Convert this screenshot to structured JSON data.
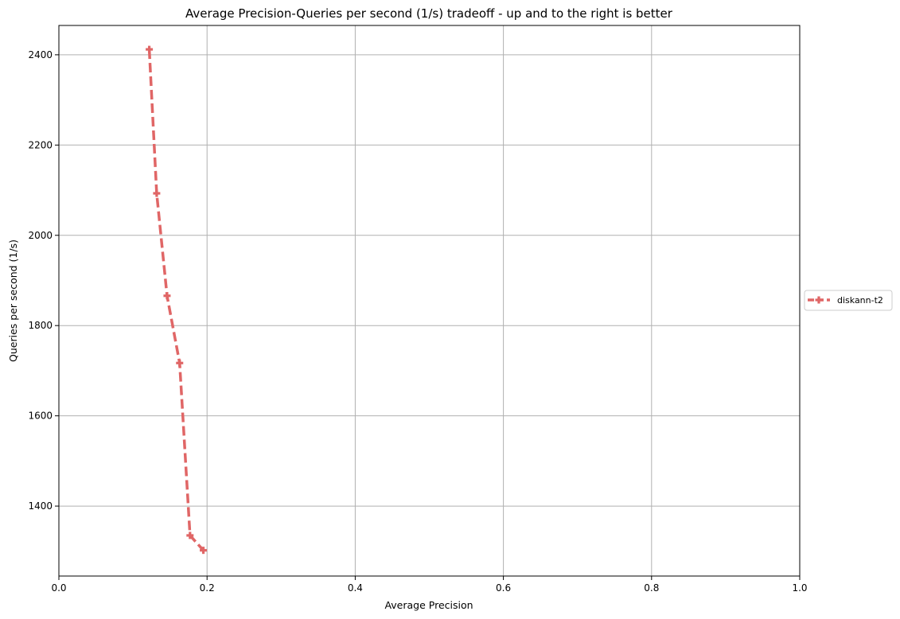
{
  "chart_data": {
    "type": "line",
    "title": "Average Precision-Queries per second (1/s) tradeoff - up and to the right is better",
    "xlabel": "Average Precision",
    "ylabel": "Queries per second (1/s)",
    "xlim": [
      0.0,
      1.0
    ],
    "ylim": [
      1245,
      2465
    ],
    "xticks": [
      0.0,
      0.2,
      0.4,
      0.6,
      0.8,
      1.0
    ],
    "xtick_labels": [
      "0.0",
      "0.2",
      "0.4",
      "0.6",
      "0.8",
      "1.0"
    ],
    "yticks": [
      1400,
      1600,
      1800,
      2000,
      2200,
      2400
    ],
    "ytick_labels": [
      "1400",
      "1600",
      "1800",
      "2000",
      "2200",
      "2400"
    ],
    "grid": true,
    "legend_position": "right",
    "series": [
      {
        "name": "diskann-t2",
        "color": "#e06666",
        "line_style": "dashed",
        "marker": "plus",
        "x": [
          0.122,
          0.132,
          0.146,
          0.163,
          0.177,
          0.195
        ],
        "y": [
          2412,
          2093,
          1866,
          1717,
          1335,
          1302
        ]
      }
    ]
  }
}
